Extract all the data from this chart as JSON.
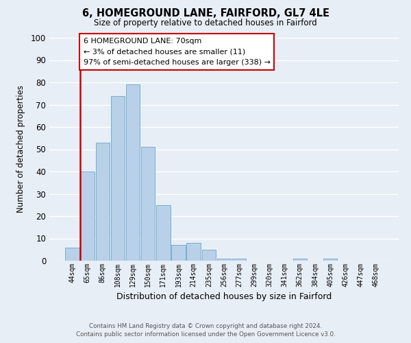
{
  "title": "6, HOMEGROUND LANE, FAIRFORD, GL7 4LE",
  "subtitle": "Size of property relative to detached houses in Fairford",
  "xlabel": "Distribution of detached houses by size in Fairford",
  "ylabel": "Number of detached properties",
  "bar_color": "#b8d0e8",
  "bar_edge_color": "#7aaed0",
  "bg_color": "#e8eef6",
  "grid_color": "#ffffff",
  "categories": [
    "44sqm",
    "65sqm",
    "86sqm",
    "108sqm",
    "129sqm",
    "150sqm",
    "171sqm",
    "193sqm",
    "214sqm",
    "235sqm",
    "256sqm",
    "277sqm",
    "299sqm",
    "320sqm",
    "341sqm",
    "362sqm",
    "384sqm",
    "405sqm",
    "426sqm",
    "447sqm",
    "468sqm"
  ],
  "values": [
    6,
    40,
    53,
    74,
    79,
    51,
    25,
    7,
    8,
    5,
    1,
    1,
    0,
    0,
    0,
    1,
    0,
    1,
    0,
    0,
    0
  ],
  "ylim": [
    0,
    100
  ],
  "yticks": [
    0,
    10,
    20,
    30,
    40,
    50,
    60,
    70,
    80,
    90,
    100
  ],
  "property_line_color": "#cc0000",
  "annotation_line1": "6 HOMEGROUND LANE: 70sqm",
  "annotation_line2": "← 3% of detached houses are smaller (11)",
  "annotation_line3": "97% of semi-detached houses are larger (338) →",
  "annotation_box_color": "#ffffff",
  "annotation_box_edge_color": "#cc0000",
  "footer_line1": "Contains HM Land Registry data © Crown copyright and database right 2024.",
  "footer_line2": "Contains public sector information licensed under the Open Government Licence v3.0."
}
